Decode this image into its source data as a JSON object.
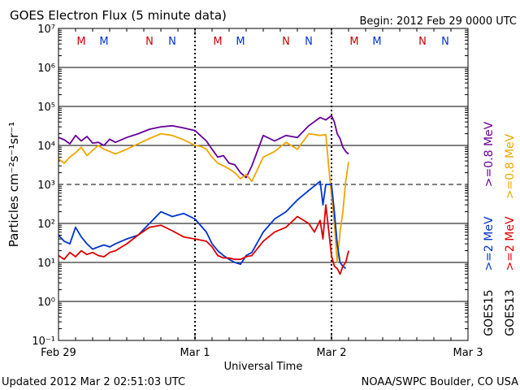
{
  "chart_data": {
    "type": "line",
    "title": "GOES Electron Flux (5 minute data)",
    "begin_label": "Begin: 2012 Feb 29 0000 UTC",
    "xlabel": "Universal Time",
    "ylabel": "Particles cm⁻²s⁻¹sr⁻¹",
    "x_ticks": [
      "Feb 29",
      "Mar 1",
      "Mar 2",
      "Mar 3"
    ],
    "xlim_hours": [
      0,
      72
    ],
    "y_scale": "log",
    "y_ticks": [
      "10⁻¹",
      "10⁰",
      "10¹",
      "10²",
      "10³",
      "10⁴",
      "10⁵",
      "10⁶",
      "10⁷"
    ],
    "ylim_exp": [
      -1,
      7
    ],
    "day_night_markers": [
      {
        "label": "M",
        "hour": 4,
        "color": "#cc0000"
      },
      {
        "label": "M",
        "hour": 8,
        "color": "#0033cc"
      },
      {
        "label": "N",
        "hour": 16,
        "color": "#cc0000"
      },
      {
        "label": "N",
        "hour": 20,
        "color": "#0033cc"
      },
      {
        "label": "M",
        "hour": 28,
        "color": "#cc0000"
      },
      {
        "label": "M",
        "hour": 32,
        "color": "#0033cc"
      },
      {
        "label": "N",
        "hour": 40,
        "color": "#cc0000"
      },
      {
        "label": "N",
        "hour": 44,
        "color": "#0033cc"
      },
      {
        "label": "M",
        "hour": 52,
        "color": "#cc0000"
      },
      {
        "label": "M",
        "hour": 56,
        "color": "#0033cc"
      },
      {
        "label": "N",
        "hour": 64,
        "color": "#cc0000"
      },
      {
        "label": "N",
        "hour": 68,
        "color": "#0033cc"
      }
    ],
    "series": [
      {
        "color": "#660099",
        "x": [
          0,
          1,
          2,
          3,
          4,
          5,
          6,
          7,
          8,
          9,
          10,
          12,
          14,
          16,
          18,
          20,
          22,
          24,
          26,
          27,
          28,
          29,
          30,
          31,
          32,
          33,
          34,
          36,
          38,
          40,
          42,
          44,
          46,
          47,
          48,
          48.5,
          49,
          49.5,
          50,
          50.5,
          51
        ],
        "values": [
          16000,
          14000,
          11000,
          18000,
          13000,
          17000,
          11500,
          12000,
          10000,
          14500,
          12000,
          16000,
          20000,
          26000,
          30000,
          32000,
          28000,
          24000,
          13000,
          8000,
          5000,
          5500,
          3500,
          3200,
          2000,
          1500,
          3000,
          18000,
          13000,
          18000,
          16000,
          32000,
          52000,
          45000,
          58000,
          40000,
          20000,
          15000,
          9000,
          7000,
          6000
        ]
      },
      {
        "color": "#f0a500",
        "x": [
          0,
          1,
          2,
          3,
          4,
          5,
          6,
          7,
          8,
          9,
          10,
          12,
          14,
          16,
          18,
          20,
          22,
          24,
          25,
          26,
          27,
          28,
          29,
          30,
          31,
          32,
          33,
          34,
          36,
          38,
          40,
          42,
          44,
          46,
          47,
          47.5,
          48,
          48.5,
          49,
          49.5,
          50,
          50.5,
          51
        ],
        "values": [
          4500,
          3500,
          5000,
          6500,
          9000,
          5500,
          7500,
          10000,
          8000,
          7000,
          6000,
          8000,
          11000,
          15000,
          20000,
          18000,
          14000,
          10000,
          9500,
          8000,
          5000,
          3500,
          3000,
          2500,
          2000,
          1400,
          1800,
          1200,
          5000,
          7000,
          12000,
          8000,
          20000,
          18000,
          19000,
          3000,
          500,
          100,
          10,
          60,
          200,
          1200,
          3800
        ]
      },
      {
        "color": "#0033cc",
        "x": [
          0,
          1,
          2,
          3,
          4,
          5,
          6,
          7,
          8,
          9,
          10,
          12,
          14,
          16,
          18,
          20,
          22,
          24,
          26,
          27,
          28,
          29,
          30,
          31,
          32,
          33,
          34,
          36,
          38,
          40,
          42,
          44,
          46,
          46.5,
          47,
          48,
          48.5,
          49,
          49.5,
          50,
          50.5
        ],
        "values": [
          50,
          35,
          30,
          80,
          45,
          30,
          22,
          25,
          28,
          25,
          30,
          40,
          50,
          100,
          200,
          150,
          180,
          130,
          60,
          30,
          20,
          15,
          12,
          10,
          9,
          15,
          18,
          60,
          130,
          200,
          400,
          700,
          1200,
          300,
          1000,
          1000,
          200,
          30,
          10,
          8,
          7
        ]
      },
      {
        "color": "#dd0000",
        "x": [
          0,
          1,
          2,
          3,
          4,
          5,
          6,
          7,
          8,
          9,
          10,
          12,
          14,
          16,
          18,
          20,
          22,
          24,
          26,
          27,
          28,
          29,
          30,
          31,
          32,
          33,
          34,
          36,
          38,
          40,
          42,
          44,
          45,
          46,
          46.5,
          47,
          48,
          48.5,
          49,
          49.5,
          50,
          50.5,
          51
        ],
        "values": [
          15,
          12,
          18,
          14,
          20,
          16,
          18,
          15,
          14,
          18,
          20,
          30,
          50,
          80,
          90,
          65,
          45,
          40,
          35,
          25,
          15,
          13,
          13,
          12,
          12,
          14,
          15,
          35,
          60,
          80,
          150,
          100,
          60,
          120,
          40,
          300,
          15,
          8,
          7,
          5,
          8,
          10,
          20
        ]
      }
    ],
    "legend_right": [
      {
        "label": ">=0.8 MeV",
        "color": "#f0a500"
      },
      {
        "label": ">=0.8 MeV",
        "color": "#660099"
      },
      {
        "label": ">=2 MeV",
        "color": "#dd0000"
      },
      {
        "label": ">=2 MeV",
        "color": "#0033cc"
      },
      {
        "label": "GOES13",
        "color": "#000000"
      },
      {
        "label": "GOES15",
        "color": "#000000"
      }
    ],
    "grid": true
  },
  "footer": {
    "updated": "Updated 2012 Mar  2 02:51:03 UTC",
    "source": "NOAA/SWPC Boulder, CO USA"
  }
}
